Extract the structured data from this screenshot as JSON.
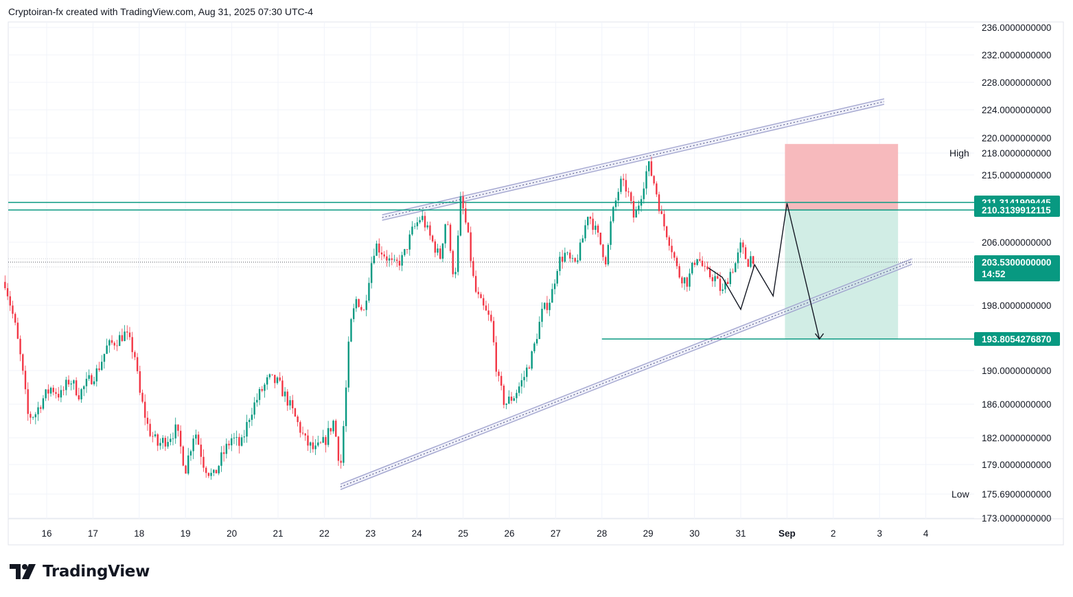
{
  "header": {
    "text": "Cryptoiran-fx created with TradingView.com, Aug 31, 2025 07:30 UTC-4"
  },
  "logo": {
    "text": "TradingView",
    "icon": "tradingview-logo-icon"
  },
  "colors": {
    "up": "#089981",
    "down": "#f23645",
    "level_line": "#089981",
    "channel": "#9598c7",
    "stop_zone": "#f7b6b9",
    "target_zone": "#cfece4",
    "grid": "#f0f3fa",
    "tag_bg": "#089981"
  },
  "chart_data": {
    "type": "candlestick",
    "title": "",
    "xlabel": "",
    "ylabel": "",
    "ylim": [
      173,
      236
    ],
    "x_ticks": [
      "16",
      "17",
      "18",
      "19",
      "20",
      "21",
      "22",
      "23",
      "24",
      "25",
      "26",
      "27",
      "28",
      "29",
      "30",
      "31",
      "Sep",
      "2",
      "3",
      "4"
    ],
    "y_ticks": [
      "236.0000000000",
      "232.0000000000",
      "228.0000000000",
      "224.0000000000",
      "220.0000000000",
      "218.0000000000",
      "215.0000000000",
      "206.0000000000",
      "198.0000000000",
      "190.0000000000",
      "186.0000000000",
      "182.0000000000",
      "179.0000000000",
      "175.6900000000",
      "173.0000000000"
    ],
    "y_tick_values": [
      236,
      232,
      228,
      224,
      220,
      218,
      215,
      206,
      198,
      190,
      186,
      182,
      179,
      175.69,
      173
    ],
    "session_high": {
      "label": "High",
      "value": 218.0
    },
    "session_low": {
      "label": "Low",
      "value": 175.69
    },
    "price_tags": [
      {
        "text": "211.3141909445",
        "value": 211.3141909445
      },
      {
        "text": "210.3139912115",
        "value": 210.3139912115
      },
      {
        "text": "203.5300000000",
        "value": 203.53,
        "sub": "14:52"
      },
      {
        "text": "193.8054276870",
        "value": 193.805427687
      }
    ],
    "current_price": 203.53,
    "horizontal_levels": [
      211.3141909445,
      210.3139912115
    ],
    "target_level": 193.805427687,
    "position": {
      "entry": 210.3139912115,
      "stop": 219.2,
      "target": 193.805427687,
      "x_start": "Sep 0",
      "x_end": "3.4"
    },
    "path_series": {
      "description_points_day_price": [
        [
          30.3,
          202.8
        ],
        [
          30.6,
          201.6
        ],
        [
          31.0,
          197.5
        ],
        [
          31.3,
          203.2
        ],
        [
          31.7,
          199.2
        ],
        [
          32.0,
          211.2
        ],
        [
          32.7,
          193.8
        ]
      ]
    },
    "channel_upper": {
      "start": [
        23.25,
        209.3
      ],
      "end": [
        34.1,
        225.2
      ]
    },
    "channel_lower": {
      "start": [
        22.35,
        176.5
      ],
      "end": [
        34.7,
        203.6
      ]
    },
    "price_path": [
      [
        15.1,
        201.0
      ],
      [
        15.3,
        196.0
      ],
      [
        15.45,
        191.0
      ],
      [
        15.6,
        184.5
      ],
      [
        15.75,
        184.8
      ],
      [
        15.9,
        186.5
      ],
      [
        16.1,
        188.0
      ],
      [
        16.3,
        187.0
      ],
      [
        16.5,
        189.0
      ],
      [
        16.7,
        187.2
      ],
      [
        16.9,
        188.7
      ],
      [
        17.1,
        190.0
      ],
      [
        17.3,
        192.8
      ],
      [
        17.5,
        193.6
      ],
      [
        17.7,
        194.5
      ],
      [
        17.9,
        192.0
      ],
      [
        18.0,
        187.5
      ],
      [
        18.2,
        183.0
      ],
      [
        18.4,
        181.2
      ],
      [
        18.6,
        181.9
      ],
      [
        18.8,
        183.0
      ],
      [
        19.0,
        178.5
      ],
      [
        19.2,
        183.0
      ],
      [
        19.4,
        179.0
      ],
      [
        19.6,
        177.5
      ],
      [
        19.8,
        180.0
      ],
      [
        20.0,
        182.0
      ],
      [
        20.2,
        181.0
      ],
      [
        20.4,
        185.0
      ],
      [
        20.6,
        187.2
      ],
      [
        20.8,
        189.0
      ],
      [
        21.0,
        188.5
      ],
      [
        21.2,
        186.5
      ],
      [
        21.4,
        184.0
      ],
      [
        21.6,
        181.5
      ],
      [
        21.8,
        180.5
      ],
      [
        22.0,
        181.5
      ],
      [
        22.2,
        184.0
      ],
      [
        22.35,
        178.5
      ],
      [
        22.45,
        186.0
      ],
      [
        22.55,
        195.0
      ],
      [
        22.7,
        199.0
      ],
      [
        22.85,
        197.0
      ],
      [
        23.0,
        203.0
      ],
      [
        23.1,
        205.8
      ],
      [
        23.3,
        204.5
      ],
      [
        23.5,
        203.0
      ],
      [
        23.7,
        204.0
      ],
      [
        23.9,
        207.5
      ],
      [
        24.1,
        209.5
      ],
      [
        24.3,
        206.5
      ],
      [
        24.5,
        204.0
      ],
      [
        24.65,
        210.0
      ],
      [
        24.75,
        202.5
      ],
      [
        24.85,
        202.8
      ],
      [
        24.95,
        212.0
      ],
      [
        25.1,
        207.0
      ],
      [
        25.25,
        200.0
      ],
      [
        25.4,
        198.0
      ],
      [
        25.6,
        196.0
      ],
      [
        25.75,
        189.0
      ],
      [
        25.9,
        186.0
      ],
      [
        26.1,
        187.0
      ],
      [
        26.3,
        189.0
      ],
      [
        26.5,
        192.0
      ],
      [
        26.7,
        197.0
      ],
      [
        26.9,
        199.0
      ],
      [
        27.05,
        203.5
      ],
      [
        27.2,
        204.5
      ],
      [
        27.4,
        203.0
      ],
      [
        27.55,
        205.5
      ],
      [
        27.7,
        210.0
      ],
      [
        27.9,
        207.0
      ],
      [
        28.1,
        203.5
      ],
      [
        28.2,
        209.0
      ],
      [
        28.4,
        214.0
      ],
      [
        28.55,
        213.0
      ],
      [
        28.7,
        209.0
      ],
      [
        28.85,
        212.5
      ],
      [
        29.0,
        216.5
      ],
      [
        29.15,
        213.5
      ],
      [
        29.3,
        209.0
      ],
      [
        29.5,
        205.5
      ],
      [
        29.65,
        202.0
      ],
      [
        29.85,
        201.0
      ],
      [
        30.05,
        204.5
      ],
      [
        30.25,
        202.0
      ],
      [
        30.45,
        201.5
      ],
      [
        30.6,
        199.5
      ],
      [
        30.75,
        202.0
      ],
      [
        30.9,
        203.5
      ],
      [
        31.0,
        205.5
      ],
      [
        31.15,
        203.5
      ],
      [
        31.25,
        204.5
      ],
      [
        31.3,
        203.5
      ]
    ]
  }
}
